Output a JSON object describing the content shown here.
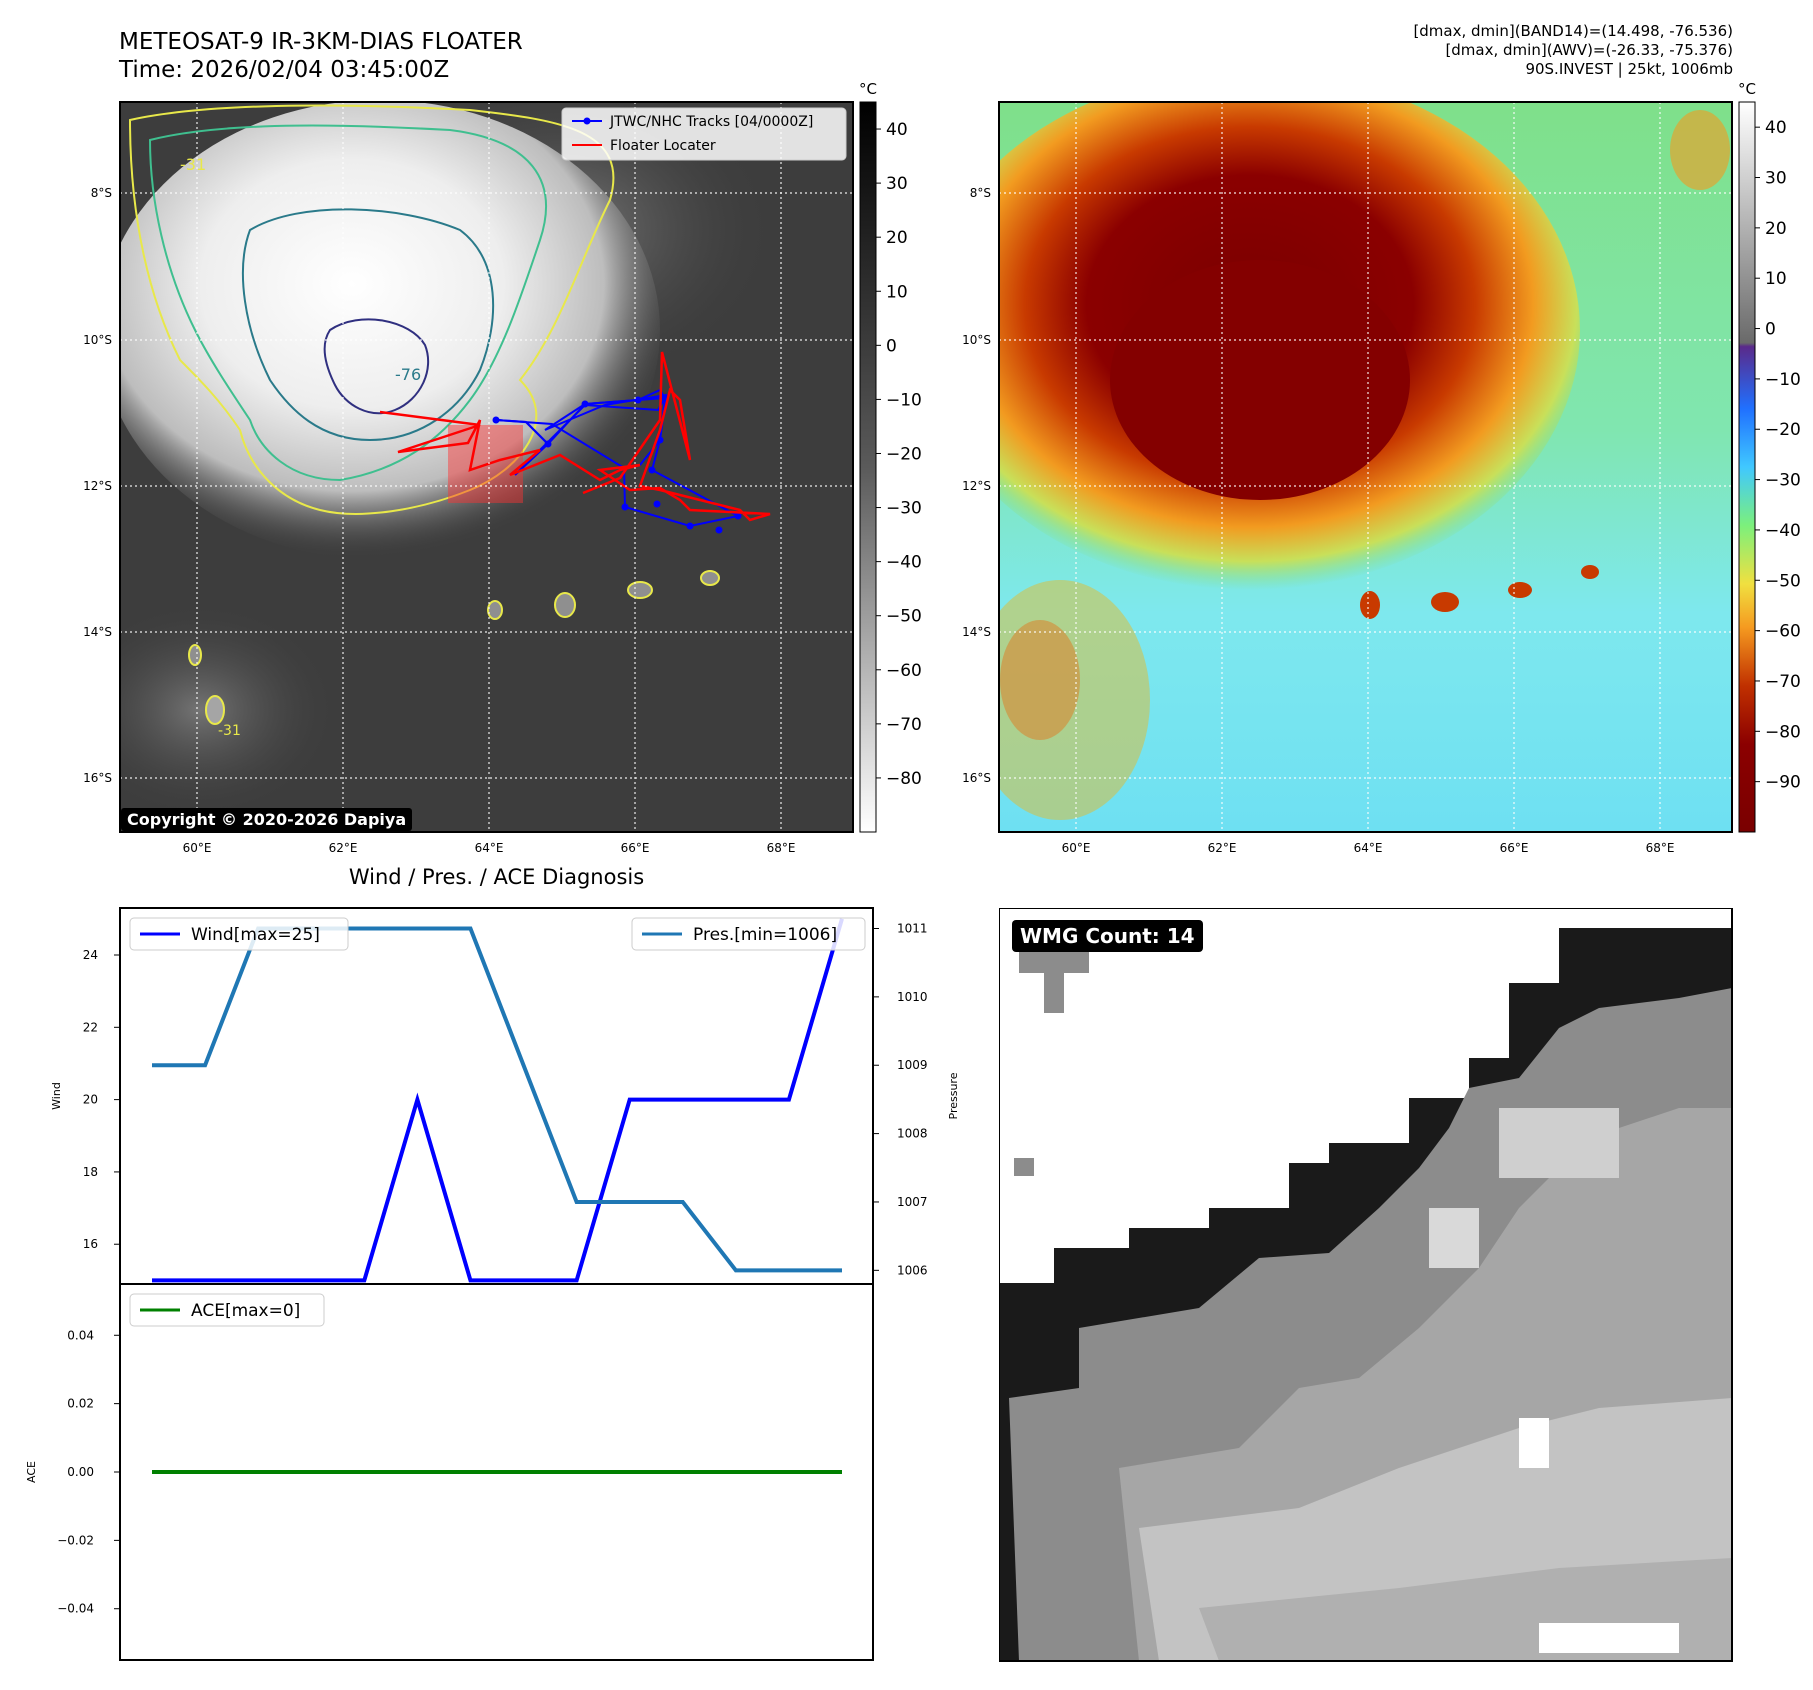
{
  "header": {
    "title_line1": "METEOSAT-9 IR-3KM-DIAS FLOATER",
    "title_line2": "Time: 2026/02/04 03:45:00Z",
    "info_line1": "[dmax, dmin](BAND14)=(14.498, -76.536)",
    "info_line2": "[dmax, dmin](AWV)=(-26.33, -75.376)",
    "info_line3": "90S.INVEST | 25kt, 1006mb"
  },
  "map_axes": {
    "lat_labels": [
      "8°S",
      "10°S",
      "12°S",
      "14°S",
      "16°S"
    ],
    "lon_labels": [
      "60°E",
      "62°E",
      "64°E",
      "66°E",
      "68°E"
    ]
  },
  "ir_panel": {
    "colorbar_unit": "°C",
    "colorbar_ticks": [
      "40",
      "30",
      "20",
      "10",
      "0",
      "−10",
      "−20",
      "−30",
      "−40",
      "−50",
      "−60",
      "−70",
      "−80"
    ],
    "legend": [
      {
        "label": "JTWC/NHC Tracks [04/0000Z]",
        "color": "#0000ff"
      },
      {
        "label": "Floater Locater",
        "color": "#ff0000"
      }
    ],
    "contour_labels": [
      "-31",
      "-76",
      "-31"
    ],
    "copyright": "Copyright © 2020-2026 Dapiya",
    "colors": {
      "track": "#0000ff",
      "locater": "#ff0000",
      "contour_outer": "#e8e84a",
      "contour_mid": "#3fbf8f",
      "contour_inner": "#2a7a8a",
      "contour_core": "#303080"
    }
  },
  "color_panel": {
    "colorbar_unit": "°C",
    "colorbar_ticks": [
      "40",
      "30",
      "20",
      "10",
      "0",
      "−10",
      "−20",
      "−30",
      "−40",
      "−50",
      "−60",
      "−70",
      "−80",
      "−90"
    ]
  },
  "diagnosis": {
    "title": "Wind / Pres. / ACE Diagnosis",
    "wind_axis_label": "Wind",
    "pressure_axis_label": "Pressure",
    "ace_axis_label": "ACE",
    "wind_legend": "Wind[max=25]",
    "pres_legend": "Pres.[min=1006]",
    "ace_legend": "ACE[max=0]",
    "wind_ticks": [
      "24",
      "22",
      "20",
      "18",
      "16"
    ],
    "pres_ticks": [
      "1011",
      "1010",
      "1009",
      "1008",
      "1007",
      "1006"
    ],
    "ace_ticks": [
      "0.04",
      "0.02",
      "0.00",
      "−0.02",
      "−0.04"
    ],
    "colors": {
      "wind": "#0000ff",
      "pressure": "#1f77b4",
      "ace": "#008000"
    }
  },
  "wmg": {
    "count_label": "WMG Count: 14"
  },
  "chart_data": [
    {
      "type": "line",
      "title": "Wind / Pres. / ACE Diagnosis",
      "x": [
        0,
        1,
        2,
        3,
        4,
        5,
        6,
        7,
        8,
        9,
        10,
        11,
        12,
        13
      ],
      "series": [
        {
          "name": "Wind[max=25]",
          "axis": "left",
          "values": [
            15,
            15,
            15,
            15,
            15,
            20,
            15,
            15,
            15,
            20,
            20,
            20,
            20,
            25
          ]
        },
        {
          "name": "Pres.[min=1006]",
          "axis": "right",
          "values": [
            1009,
            1009,
            1011,
            1011,
            1011,
            1011,
            1011,
            1009,
            1007,
            1007,
            1007,
            1006,
            1006,
            1006
          ]
        }
      ],
      "ylabel": "Wind",
      "ylim": [
        14.9,
        25.3
      ],
      "y2label": "Pressure",
      "y2lim": [
        1005.8,
        1011.3
      ],
      "legend": [
        "top-left",
        "top-right"
      ],
      "grid": false
    },
    {
      "type": "line",
      "x": [
        0,
        13
      ],
      "series": [
        {
          "name": "ACE[max=0]",
          "values": [
            0,
            0
          ]
        }
      ],
      "ylabel": "ACE",
      "ylim": [
        -0.055,
        0.055
      ],
      "legend": "top-left",
      "grid": false
    }
  ]
}
